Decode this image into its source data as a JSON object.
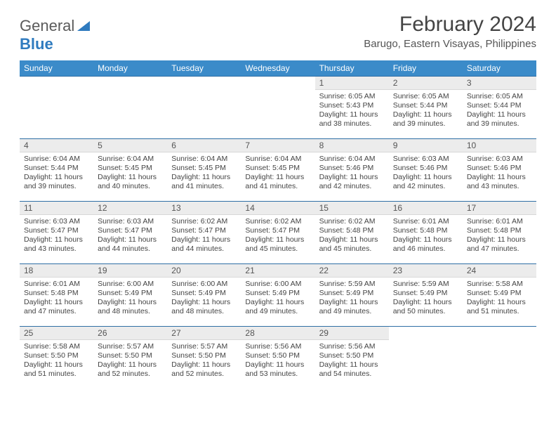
{
  "logo": {
    "part1": "General",
    "part2": "Blue"
  },
  "title": "February 2024",
  "location": "Barugo, Eastern Visayas, Philippines",
  "colors": {
    "header_bg": "#3b8bc9",
    "header_text": "#ffffff",
    "daynum_bg": "#ececec",
    "row_divider": "#2f6fa5",
    "body_text": "#444444",
    "logo_gray": "#5a5a5a",
    "logo_blue": "#2f7bbf"
  },
  "weekdays": [
    "Sunday",
    "Monday",
    "Tuesday",
    "Wednesday",
    "Thursday",
    "Friday",
    "Saturday"
  ],
  "weeks": [
    [
      null,
      null,
      null,
      null,
      {
        "n": "1",
        "sr": "6:05 AM",
        "ss": "5:43 PM",
        "dl": "11 hours and 38 minutes."
      },
      {
        "n": "2",
        "sr": "6:05 AM",
        "ss": "5:44 PM",
        "dl": "11 hours and 39 minutes."
      },
      {
        "n": "3",
        "sr": "6:05 AM",
        "ss": "5:44 PM",
        "dl": "11 hours and 39 minutes."
      }
    ],
    [
      {
        "n": "4",
        "sr": "6:04 AM",
        "ss": "5:44 PM",
        "dl": "11 hours and 39 minutes."
      },
      {
        "n": "5",
        "sr": "6:04 AM",
        "ss": "5:45 PM",
        "dl": "11 hours and 40 minutes."
      },
      {
        "n": "6",
        "sr": "6:04 AM",
        "ss": "5:45 PM",
        "dl": "11 hours and 41 minutes."
      },
      {
        "n": "7",
        "sr": "6:04 AM",
        "ss": "5:45 PM",
        "dl": "11 hours and 41 minutes."
      },
      {
        "n": "8",
        "sr": "6:04 AM",
        "ss": "5:46 PM",
        "dl": "11 hours and 42 minutes."
      },
      {
        "n": "9",
        "sr": "6:03 AM",
        "ss": "5:46 PM",
        "dl": "11 hours and 42 minutes."
      },
      {
        "n": "10",
        "sr": "6:03 AM",
        "ss": "5:46 PM",
        "dl": "11 hours and 43 minutes."
      }
    ],
    [
      {
        "n": "11",
        "sr": "6:03 AM",
        "ss": "5:47 PM",
        "dl": "11 hours and 43 minutes."
      },
      {
        "n": "12",
        "sr": "6:03 AM",
        "ss": "5:47 PM",
        "dl": "11 hours and 44 minutes."
      },
      {
        "n": "13",
        "sr": "6:02 AM",
        "ss": "5:47 PM",
        "dl": "11 hours and 44 minutes."
      },
      {
        "n": "14",
        "sr": "6:02 AM",
        "ss": "5:47 PM",
        "dl": "11 hours and 45 minutes."
      },
      {
        "n": "15",
        "sr": "6:02 AM",
        "ss": "5:48 PM",
        "dl": "11 hours and 45 minutes."
      },
      {
        "n": "16",
        "sr": "6:01 AM",
        "ss": "5:48 PM",
        "dl": "11 hours and 46 minutes."
      },
      {
        "n": "17",
        "sr": "6:01 AM",
        "ss": "5:48 PM",
        "dl": "11 hours and 47 minutes."
      }
    ],
    [
      {
        "n": "18",
        "sr": "6:01 AM",
        "ss": "5:48 PM",
        "dl": "11 hours and 47 minutes."
      },
      {
        "n": "19",
        "sr": "6:00 AM",
        "ss": "5:49 PM",
        "dl": "11 hours and 48 minutes."
      },
      {
        "n": "20",
        "sr": "6:00 AM",
        "ss": "5:49 PM",
        "dl": "11 hours and 48 minutes."
      },
      {
        "n": "21",
        "sr": "6:00 AM",
        "ss": "5:49 PM",
        "dl": "11 hours and 49 minutes."
      },
      {
        "n": "22",
        "sr": "5:59 AM",
        "ss": "5:49 PM",
        "dl": "11 hours and 49 minutes."
      },
      {
        "n": "23",
        "sr": "5:59 AM",
        "ss": "5:49 PM",
        "dl": "11 hours and 50 minutes."
      },
      {
        "n": "24",
        "sr": "5:58 AM",
        "ss": "5:49 PM",
        "dl": "11 hours and 51 minutes."
      }
    ],
    [
      {
        "n": "25",
        "sr": "5:58 AM",
        "ss": "5:50 PM",
        "dl": "11 hours and 51 minutes."
      },
      {
        "n": "26",
        "sr": "5:57 AM",
        "ss": "5:50 PM",
        "dl": "11 hours and 52 minutes."
      },
      {
        "n": "27",
        "sr": "5:57 AM",
        "ss": "5:50 PM",
        "dl": "11 hours and 52 minutes."
      },
      {
        "n": "28",
        "sr": "5:56 AM",
        "ss": "5:50 PM",
        "dl": "11 hours and 53 minutes."
      },
      {
        "n": "29",
        "sr": "5:56 AM",
        "ss": "5:50 PM",
        "dl": "11 hours and 54 minutes."
      },
      null,
      null
    ]
  ],
  "labels": {
    "sunrise": "Sunrise:",
    "sunset": "Sunset:",
    "daylight": "Daylight:"
  }
}
